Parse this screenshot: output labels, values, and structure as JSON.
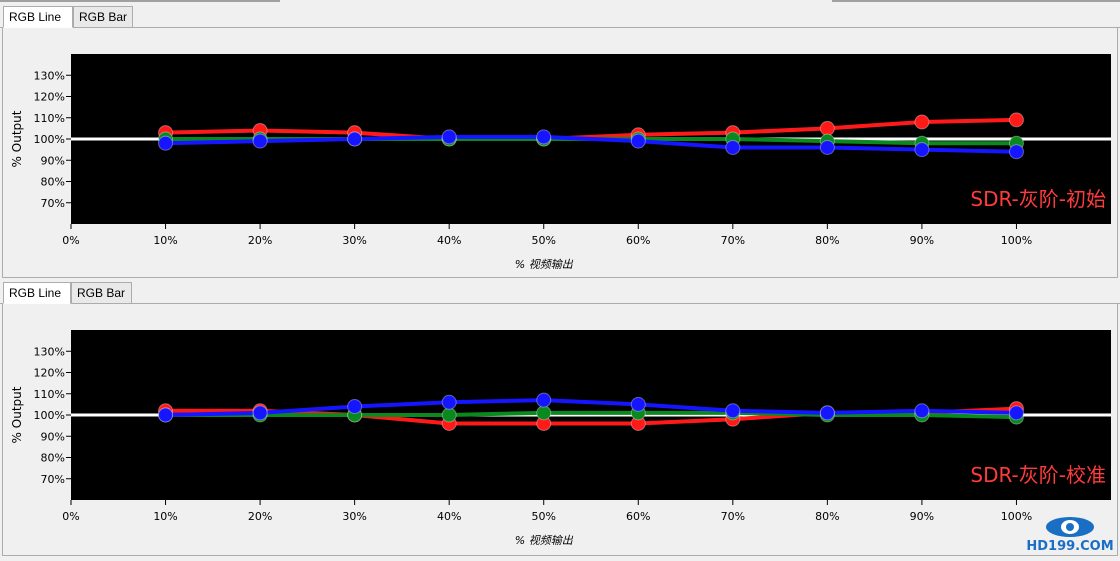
{
  "tabs": [
    "RGB Line",
    "RGB Bar"
  ],
  "colors": {
    "red": "#ff1a1a",
    "green": "#0a8a1e",
    "blue": "#1515ff",
    "reference": "#ffffff",
    "annotation": "#ff3b3b",
    "plot_bg": "#000000"
  },
  "logo": {
    "text": "HD199.COM",
    "color": "#1a6fc4"
  },
  "chart_data": [
    {
      "type": "line",
      "title": "",
      "annotation": "SDR-灰阶-初始",
      "xlabel": "% 视频输出",
      "ylabel": "% Output",
      "x": [
        10,
        20,
        30,
        40,
        50,
        60,
        70,
        80,
        90,
        100
      ],
      "x_ticks": [
        "0%",
        "10%",
        "20%",
        "30%",
        "40%",
        "50%",
        "60%",
        "70%",
        "80%",
        "90%",
        "100%"
      ],
      "xlim": [
        0,
        110
      ],
      "y_ticks": [
        "70%",
        "80%",
        "90%",
        "100%",
        "110%",
        "120%",
        "130%"
      ],
      "ylim": [
        60,
        140
      ],
      "reference": 100,
      "series": [
        {
          "color": "red",
          "values": [
            103,
            104,
            103,
            100,
            100,
            102,
            103,
            105,
            108,
            109
          ]
        },
        {
          "color": "green",
          "values": [
            100,
            100,
            100,
            100,
            100,
            100,
            100,
            99,
            98,
            98
          ]
        },
        {
          "color": "blue",
          "values": [
            98,
            99,
            100,
            101,
            101,
            99,
            96,
            96,
            95,
            94
          ]
        }
      ]
    },
    {
      "type": "line",
      "title": "",
      "annotation": "SDR-灰阶-校准",
      "xlabel": "% 视频输出",
      "ylabel": "% Output",
      "x": [
        10,
        20,
        30,
        40,
        50,
        60,
        70,
        80,
        90,
        100
      ],
      "x_ticks": [
        "0%",
        "10%",
        "20%",
        "30%",
        "40%",
        "50%",
        "60%",
        "70%",
        "80%",
        "90%",
        "100%"
      ],
      "xlim": [
        0,
        110
      ],
      "y_ticks": [
        "70%",
        "80%",
        "90%",
        "100%",
        "110%",
        "120%",
        "130%"
      ],
      "ylim": [
        60,
        140
      ],
      "reference": 100,
      "series": [
        {
          "color": "red",
          "values": [
            102,
            102,
            100,
            96,
            96,
            96,
            98,
            101,
            101,
            103
          ]
        },
        {
          "color": "green",
          "values": [
            100,
            100,
            100,
            100,
            101,
            101,
            101,
            100,
            100,
            99
          ]
        },
        {
          "color": "blue",
          "values": [
            100,
            101,
            104,
            106,
            107,
            105,
            102,
            101,
            102,
            101
          ]
        }
      ]
    }
  ]
}
